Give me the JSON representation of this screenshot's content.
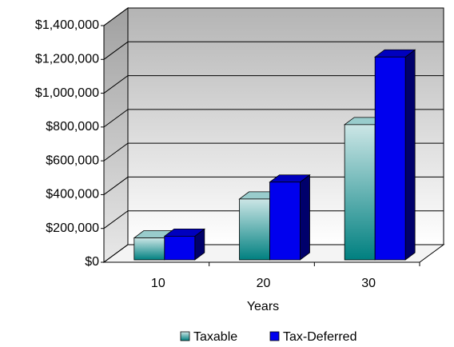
{
  "chart_data": {
    "type": "bar3d",
    "categories": [
      "10",
      "20",
      "30"
    ],
    "series": [
      {
        "name": "Taxable",
        "color": "#008080",
        "values": [
          130000,
          360000,
          800000
        ]
      },
      {
        "name": "Tax-Deferred",
        "color": "#0000ee",
        "values": [
          140000,
          460000,
          1200000
        ]
      }
    ],
    "xlabel": "Years",
    "ylim": [
      0,
      1400000
    ],
    "yticks": [
      {
        "value": 0,
        "label": "$0"
      },
      {
        "value": 200000,
        "label": "$200,000"
      },
      {
        "value": 400000,
        "label": "$400,000"
      },
      {
        "value": 600000,
        "label": "$600,000"
      },
      {
        "value": 800000,
        "label": "$800,000"
      },
      {
        "value": 1000000,
        "label": "$1,000,000"
      },
      {
        "value": 1200000,
        "label": "$1,200,000"
      },
      {
        "value": 1400000,
        "label": "$1,400,000"
      }
    ],
    "grid": true,
    "legend": "bottom"
  }
}
